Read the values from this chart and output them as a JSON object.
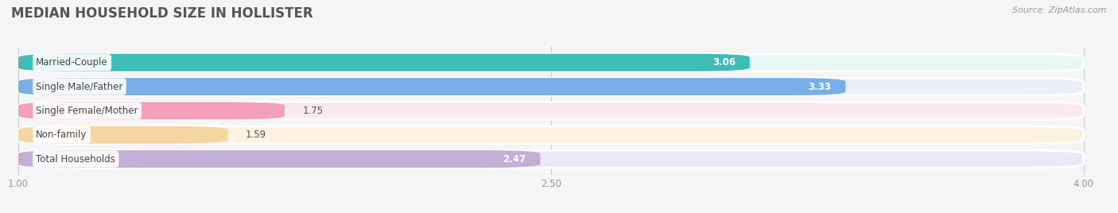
{
  "title": "MEDIAN HOUSEHOLD SIZE IN HOLLISTER",
  "source_text": "Source: ZipAtlas.com",
  "categories": [
    "Married-Couple",
    "Single Male/Father",
    "Single Female/Mother",
    "Non-family",
    "Total Households"
  ],
  "values": [
    3.06,
    3.33,
    1.75,
    1.59,
    2.47
  ],
  "bar_colors": [
    "#3dbcb8",
    "#7aaee8",
    "#f2a0bb",
    "#f5d5a0",
    "#c3aed8"
  ],
  "bar_bg_colors": [
    "#e8f8f7",
    "#eaf0fb",
    "#fce8f0",
    "#fdf2e0",
    "#ede8f5"
  ],
  "xmin": 1.0,
  "xmax": 4.0,
  "xticks": [
    1.0,
    2.5,
    4.0
  ],
  "bar_height": 0.72,
  "figsize": [
    14.06,
    2.68
  ],
  "dpi": 100,
  "title_fontsize": 12,
  "label_fontsize": 8.5,
  "value_fontsize": 8.5,
  "source_fontsize": 8,
  "tick_fontsize": 8.5,
  "bg_color": "#f5f5f5",
  "grid_color": "#cccccc",
  "title_color": "#555555",
  "tick_color": "#999999"
}
